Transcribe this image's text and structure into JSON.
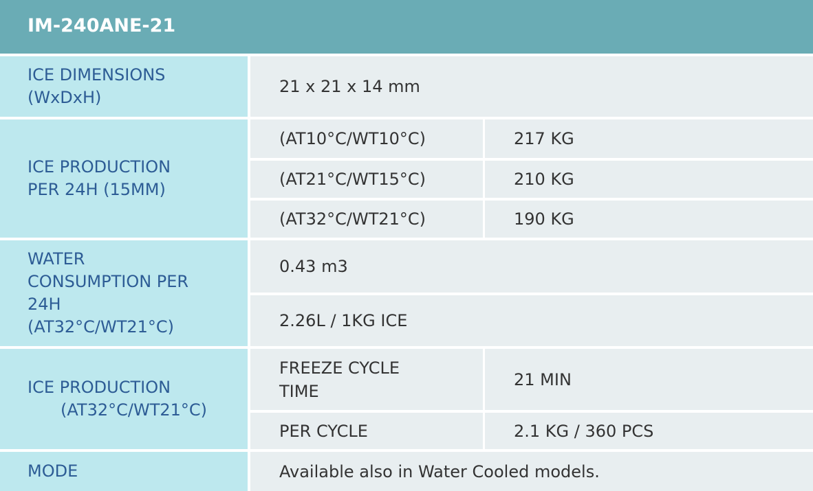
{
  "header": {
    "title": "IM-240ANE-21"
  },
  "rows": [
    {
      "label": [
        "ICE DIMENSIONS",
        "(WxDxH)"
      ],
      "cells": [
        [
          "21 x 21 x 14 mm"
        ]
      ]
    },
    {
      "label": [
        "ICE PRODUCTION",
        "PER 24H (15MM)"
      ],
      "cells": [
        [
          "(AT10°C/WT10°C)",
          "217 KG"
        ],
        [
          "(AT21°C/WT15°C)",
          "210 KG"
        ],
        [
          "(AT32°C/WT21°C)",
          "190 KG"
        ]
      ]
    },
    {
      "label": [
        "WATER",
        "CONSUMPTION PER",
        "24H",
        "(AT32°C/WT21°C)"
      ],
      "cells": [
        [
          "0.43 m3"
        ],
        [
          "2.26L / 1KG ICE"
        ]
      ]
    },
    {
      "label": [
        "ICE PRODUCTION",
        "(AT32°C/WT21°C)"
      ],
      "cells": [
        [
          "FREEZE CYCLE TIME",
          "21 MIN"
        ],
        [
          "PER CYCLE",
          "2.1 KG / 360 PCS"
        ]
      ]
    },
    {
      "label": [
        "MODE"
      ],
      "cells": [
        [
          "Available also in Water Cooled models."
        ]
      ]
    }
  ]
}
